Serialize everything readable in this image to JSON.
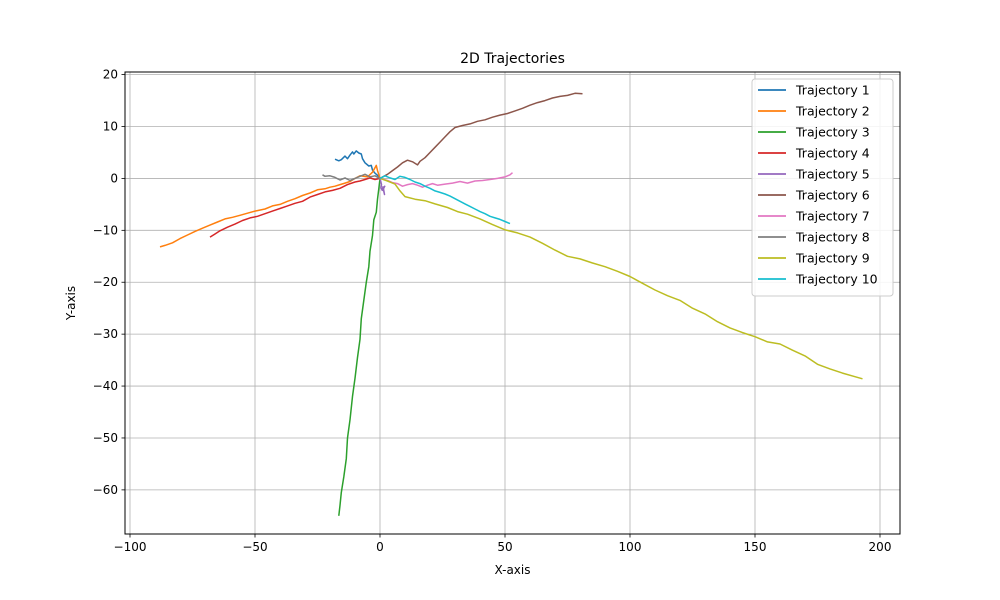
{
  "chart_data": {
    "type": "line",
    "title": "2D Trajectories",
    "xlabel": "X-axis",
    "ylabel": "Y-axis",
    "xlim": [
      -102,
      208
    ],
    "ylim": [
      -68.5,
      20.5
    ],
    "xticks": [
      -100,
      -50,
      0,
      50,
      100,
      150,
      200
    ],
    "yticks": [
      20,
      10,
      0,
      -10,
      -20,
      -30,
      -40,
      -50,
      -60
    ],
    "grid": true,
    "legend_position": "top-right",
    "series": [
      {
        "name": "Trajectory 1",
        "color": "#1f77b4",
        "points": [
          [
            0,
            0
          ],
          [
            -1,
            0.6
          ],
          [
            -2,
            1.0
          ],
          [
            -3,
            1.6
          ],
          [
            -3.5,
            2.5
          ],
          [
            -4.5,
            2.4
          ],
          [
            -6,
            3.0
          ],
          [
            -7,
            3.8
          ],
          [
            -7.5,
            4.7
          ],
          [
            -8.5,
            4.9
          ],
          [
            -9.5,
            5.3
          ],
          [
            -10.5,
            4.7
          ],
          [
            -11,
            5.1
          ],
          [
            -12,
            4.5
          ],
          [
            -13,
            3.8
          ],
          [
            -14,
            4.3
          ],
          [
            -15.5,
            3.6
          ],
          [
            -16.5,
            3.4
          ],
          [
            -18,
            3.7
          ]
        ]
      },
      {
        "name": "Trajectory 2",
        "color": "#ff7f0e",
        "points": [
          [
            0,
            0
          ],
          [
            -1,
            1.5
          ],
          [
            -1.5,
            2.5
          ],
          [
            -3,
            1.2
          ],
          [
            -5,
            0.3
          ],
          [
            -8,
            0.5
          ],
          [
            -10,
            0
          ],
          [
            -12,
            -0.6
          ],
          [
            -14,
            -0.9
          ],
          [
            -16,
            -1.2
          ],
          [
            -18,
            -1.5
          ],
          [
            -20,
            -1.7
          ],
          [
            -22,
            -2.0
          ],
          [
            -25,
            -2.2
          ],
          [
            -28,
            -2.8
          ],
          [
            -31,
            -3.3
          ],
          [
            -34,
            -3.9
          ],
          [
            -37,
            -4.4
          ],
          [
            -40,
            -5.0
          ],
          [
            -43,
            -5.3
          ],
          [
            -46,
            -5.9
          ],
          [
            -50,
            -6.3
          ],
          [
            -53,
            -6.7
          ],
          [
            -56,
            -7.1
          ],
          [
            -59,
            -7.5
          ],
          [
            -62,
            -7.8
          ],
          [
            -65,
            -8.4
          ],
          [
            -68,
            -9.0
          ],
          [
            -71,
            -9.6
          ],
          [
            -74,
            -10.2
          ],
          [
            -77,
            -10.9
          ],
          [
            -80,
            -11.6
          ],
          [
            -83,
            -12.4
          ],
          [
            -86,
            -12.9
          ],
          [
            -88,
            -13.2
          ]
        ]
      },
      {
        "name": "Trajectory 3",
        "color": "#2ca02c",
        "points": [
          [
            0,
            0
          ],
          [
            -0.5,
            -2.0
          ],
          [
            -1,
            -4.0
          ],
          [
            -1.5,
            -6.5
          ],
          [
            -2.5,
            -8.0
          ],
          [
            -3,
            -11.0
          ],
          [
            -4,
            -14.0
          ],
          [
            -4.5,
            -17.0
          ],
          [
            -5.5,
            -20.0
          ],
          [
            -6.5,
            -23.5
          ],
          [
            -7.5,
            -27.0
          ],
          [
            -8,
            -31.0
          ],
          [
            -9,
            -34.5
          ],
          [
            -10,
            -38.5
          ],
          [
            -11,
            -42.0
          ],
          [
            -12,
            -46.5
          ],
          [
            -13,
            -50.0
          ],
          [
            -13.5,
            -54.0
          ],
          [
            -14.5,
            -57.5
          ],
          [
            -15.5,
            -60.5
          ],
          [
            -16,
            -63.0
          ],
          [
            -16.5,
            -65.0
          ]
        ]
      },
      {
        "name": "Trajectory 4",
        "color": "#d62728",
        "points": [
          [
            0,
            0
          ],
          [
            -2,
            -0.2
          ],
          [
            -4,
            0.1
          ],
          [
            -6,
            -0.2
          ],
          [
            -8,
            -0.5
          ],
          [
            -10,
            -0.7
          ],
          [
            -13,
            -1.2
          ],
          [
            -16,
            -1.9
          ],
          [
            -19,
            -2.3
          ],
          [
            -22,
            -2.6
          ],
          [
            -25,
            -3.1
          ],
          [
            -28,
            -3.6
          ],
          [
            -31,
            -4.4
          ],
          [
            -34,
            -4.8
          ],
          [
            -37,
            -5.3
          ],
          [
            -40,
            -5.8
          ],
          [
            -43,
            -6.3
          ],
          [
            -46,
            -6.8
          ],
          [
            -49,
            -7.3
          ],
          [
            -52,
            -7.6
          ],
          [
            -55,
            -8.1
          ],
          [
            -58,
            -8.8
          ],
          [
            -61,
            -9.4
          ],
          [
            -64,
            -10.1
          ],
          [
            -66,
            -10.7
          ],
          [
            -68,
            -11.3
          ]
        ]
      },
      {
        "name": "Trajectory 5",
        "color": "#9467bd",
        "points": [
          [
            0,
            0
          ],
          [
            0.3,
            -0.6
          ],
          [
            0.6,
            -1.2
          ],
          [
            0.4,
            -1.8
          ],
          [
            0.9,
            -2.3
          ],
          [
            1.2,
            -1.6
          ],
          [
            1.5,
            -2.5
          ],
          [
            1.8,
            -3.1
          ],
          [
            1.4,
            -2.0
          ],
          [
            2.0,
            -1.4
          ]
        ]
      },
      {
        "name": "Trajectory 6",
        "color": "#8c564b",
        "points": [
          [
            0,
            0
          ],
          [
            3,
            0.8
          ],
          [
            5,
            1.5
          ],
          [
            7,
            2.2
          ],
          [
            9,
            3.0
          ],
          [
            11,
            3.5
          ],
          [
            13,
            3.2
          ],
          [
            15,
            2.6
          ],
          [
            16,
            3.3
          ],
          [
            18,
            4.0
          ],
          [
            20,
            5.0
          ],
          [
            22,
            6.0
          ],
          [
            24,
            7.0
          ],
          [
            26,
            8.0
          ],
          [
            28,
            9.0
          ],
          [
            30,
            9.8
          ],
          [
            33,
            10.2
          ],
          [
            36,
            10.5
          ],
          [
            39,
            11.0
          ],
          [
            42,
            11.3
          ],
          [
            45,
            11.8
          ],
          [
            48,
            12.2
          ],
          [
            51,
            12.5
          ],
          [
            54,
            13.0
          ],
          [
            57,
            13.5
          ],
          [
            60,
            14.1
          ],
          [
            63,
            14.6
          ],
          [
            66,
            15.0
          ],
          [
            69,
            15.5
          ],
          [
            72,
            15.8
          ],
          [
            75,
            16.0
          ],
          [
            78,
            16.4
          ],
          [
            81,
            16.3
          ]
        ]
      },
      {
        "name": "Trajectory 7",
        "color": "#e377c2",
        "points": [
          [
            0,
            0
          ],
          [
            3,
            -0.4
          ],
          [
            5,
            -0.8
          ],
          [
            7,
            -1.0
          ],
          [
            9,
            -1.5
          ],
          [
            11,
            -1.2
          ],
          [
            13,
            -1.0
          ],
          [
            15,
            -1.3
          ],
          [
            17,
            -1.7
          ],
          [
            19,
            -1.3
          ],
          [
            21,
            -1.0
          ],
          [
            23,
            -1.3
          ],
          [
            26,
            -1.1
          ],
          [
            29,
            -0.9
          ],
          [
            32,
            -0.6
          ],
          [
            35,
            -0.9
          ],
          [
            38,
            -0.5
          ],
          [
            41,
            -0.4
          ],
          [
            44,
            -0.2
          ],
          [
            47,
            0.0
          ],
          [
            50,
            0.3
          ],
          [
            52,
            0.7
          ],
          [
            53,
            1.1
          ]
        ]
      },
      {
        "name": "Trajectory 8",
        "color": "#7f7f7f",
        "points": [
          [
            0,
            0
          ],
          [
            -2,
            0.5
          ],
          [
            -4,
            0.3
          ],
          [
            -6,
            0.8
          ],
          [
            -8,
            0.4
          ],
          [
            -10,
            0.0
          ],
          [
            -12,
            -0.4
          ],
          [
            -14,
            0.1
          ],
          [
            -16,
            -0.3
          ],
          [
            -18,
            0.2
          ],
          [
            -20,
            0.5
          ],
          [
            -22,
            0.4
          ],
          [
            -23,
            0.7
          ]
        ]
      },
      {
        "name": "Trajectory 9",
        "color": "#bcbd22",
        "points": [
          [
            0,
            0
          ],
          [
            3,
            -0.5
          ],
          [
            6,
            -1.1
          ],
          [
            8,
            -2.4
          ],
          [
            10,
            -3.5
          ],
          [
            14,
            -4.0
          ],
          [
            18,
            -4.3
          ],
          [
            22,
            -4.9
          ],
          [
            27,
            -5.6
          ],
          [
            31,
            -6.4
          ],
          [
            35,
            -6.9
          ],
          [
            40,
            -7.8
          ],
          [
            45,
            -8.9
          ],
          [
            50,
            -9.9
          ],
          [
            55,
            -10.5
          ],
          [
            60,
            -11.3
          ],
          [
            65,
            -12.5
          ],
          [
            70,
            -13.8
          ],
          [
            75,
            -15.0
          ],
          [
            80,
            -15.5
          ],
          [
            85,
            -16.3
          ],
          [
            90,
            -17.0
          ],
          [
            95,
            -17.9
          ],
          [
            100,
            -18.9
          ],
          [
            105,
            -20.2
          ],
          [
            110,
            -21.5
          ],
          [
            115,
            -22.6
          ],
          [
            120,
            -23.5
          ],
          [
            125,
            -25.0
          ],
          [
            130,
            -26.1
          ],
          [
            135,
            -27.6
          ],
          [
            140,
            -28.8
          ],
          [
            145,
            -29.7
          ],
          [
            150,
            -30.5
          ],
          [
            155,
            -31.5
          ],
          [
            160,
            -31.9
          ],
          [
            165,
            -33.1
          ],
          [
            170,
            -34.2
          ],
          [
            175,
            -35.8
          ],
          [
            180,
            -36.7
          ],
          [
            185,
            -37.5
          ],
          [
            190,
            -38.2
          ],
          [
            193,
            -38.6
          ]
        ]
      },
      {
        "name": "Trajectory 10",
        "color": "#17becf",
        "points": [
          [
            0,
            0
          ],
          [
            2,
            0.5
          ],
          [
            4,
            0.1
          ],
          [
            6,
            -0.2
          ],
          [
            8,
            0.4
          ],
          [
            10,
            0.2
          ],
          [
            12,
            -0.2
          ],
          [
            14,
            -0.7
          ],
          [
            16,
            -1.0
          ],
          [
            18,
            -1.5
          ],
          [
            20,
            -1.9
          ],
          [
            22,
            -2.4
          ],
          [
            24,
            -2.7
          ],
          [
            26,
            -3.0
          ],
          [
            28,
            -3.4
          ],
          [
            30,
            -3.9
          ],
          [
            32,
            -4.4
          ],
          [
            34,
            -4.9
          ],
          [
            36,
            -5.4
          ],
          [
            38,
            -5.9
          ],
          [
            40,
            -6.4
          ],
          [
            42,
            -6.8
          ],
          [
            44,
            -7.3
          ],
          [
            46,
            -7.6
          ],
          [
            48,
            -7.9
          ],
          [
            50,
            -8.3
          ],
          [
            52,
            -8.7
          ]
        ]
      }
    ]
  }
}
